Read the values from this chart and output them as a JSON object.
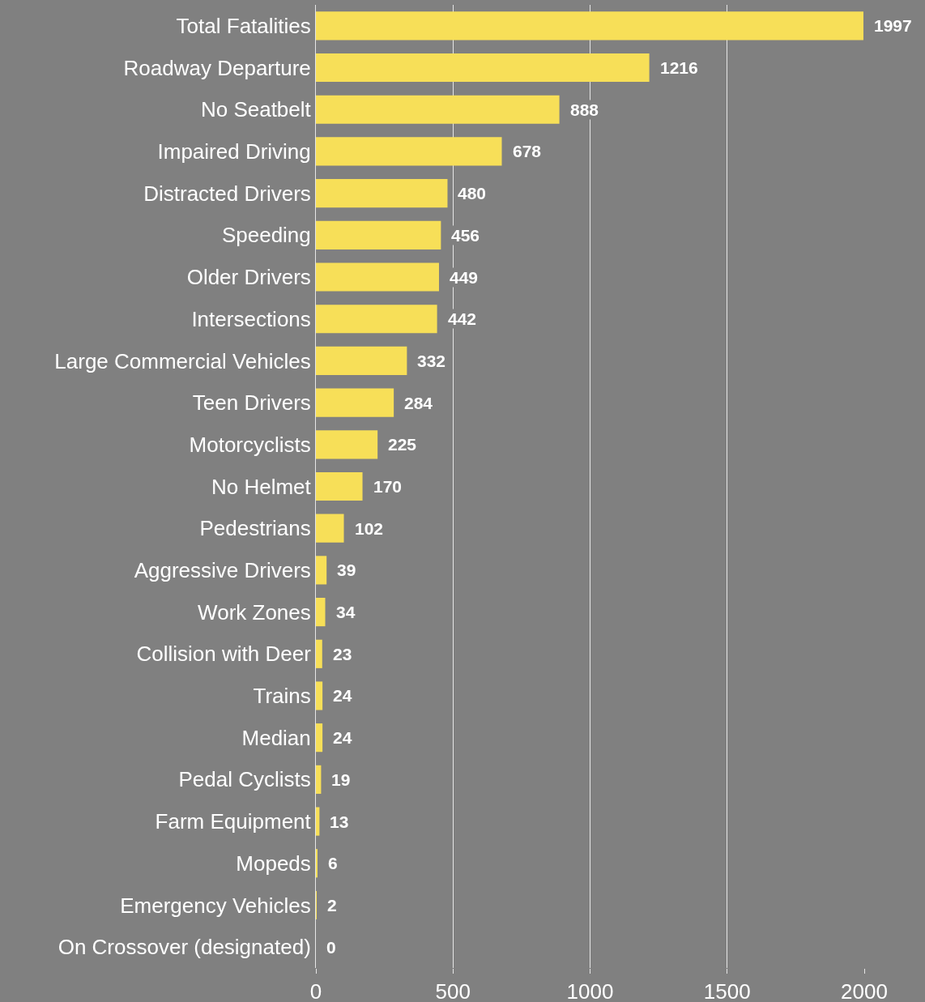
{
  "chart_data": {
    "type": "bar",
    "orientation": "horizontal",
    "categories": [
      "Total Fatalities",
      "Roadway Departure",
      "No Seatbelt",
      "Impaired Driving",
      "Distracted Drivers",
      "Speeding",
      "Older Drivers",
      "Intersections",
      "Large Commercial Vehicles",
      "Teen Drivers",
      "Motorcyclists",
      "No Helmet",
      "Pedestrians",
      "Aggressive Drivers",
      "Work Zones",
      "Collision with Deer",
      "Trains",
      "Median",
      "Pedal Cyclists",
      "Farm Equipment",
      "Mopeds",
      "Emergency Vehicles",
      "On Crossover (designated)"
    ],
    "values": [
      1997,
      1216,
      888,
      678,
      480,
      456,
      449,
      442,
      332,
      284,
      225,
      170,
      102,
      39,
      34,
      23,
      24,
      24,
      19,
      13,
      6,
      2,
      0
    ],
    "color": "#f7df58",
    "xlim": [
      0,
      2000
    ],
    "xticks": [
      0,
      500,
      1000,
      1500,
      2000
    ],
    "grid": "x",
    "data_labels": true,
    "legend": false
  }
}
